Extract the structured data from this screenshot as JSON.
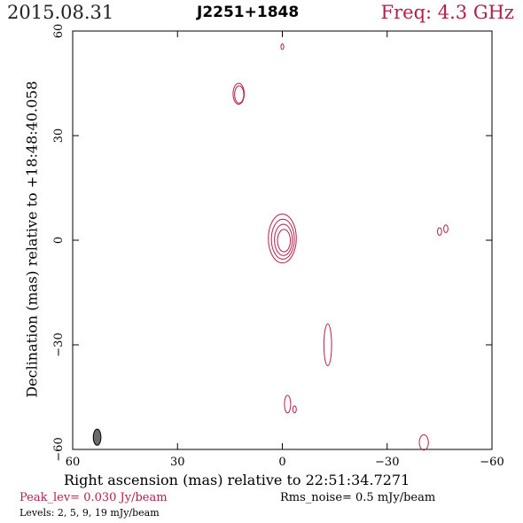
{
  "header": {
    "date": "2015.08.31",
    "source": "J2251+1848",
    "freq": "Freq: 4.3 GHz"
  },
  "chart_data": {
    "type": "contour",
    "xlabel": "Right ascension (mas) relative to 22:51:34.7271",
    "ylabel": "Declination (mas) relative to +18:48:40.058",
    "xlim": [
      60,
      -60
    ],
    "ylim": [
      -60,
      60
    ],
    "xticks": [
      60,
      30,
      0,
      -30,
      -60
    ],
    "yticks": [
      60,
      30,
      0,
      -30,
      -60
    ],
    "xtick_labels": [
      "60",
      "30",
      "0",
      "−30",
      "−60"
    ],
    "ytick_labels": [
      "60",
      "30",
      "0",
      "−30",
      "−60"
    ],
    "contour_color": "#b0204a",
    "levels_mjy": [
      2,
      5,
      9,
      19
    ],
    "peak_level_jy_per_beam": 0.03,
    "rms_noise_mjy_per_beam": 0.5,
    "components": [
      {
        "x": 0.0,
        "y": 0.5,
        "rx": 4.0,
        "ry": 7.0,
        "rings": 4
      },
      {
        "x": 12.5,
        "y": 42.0,
        "rx": 1.6,
        "ry": 3.0,
        "rings": 2
      },
      {
        "x": 0.0,
        "y": 55.5,
        "rx": 0.4,
        "ry": 0.8,
        "rings": 1
      },
      {
        "x": -45.0,
        "y": 2.5,
        "rx": 0.6,
        "ry": 1.1,
        "rings": 1
      },
      {
        "x": -46.8,
        "y": 3.3,
        "rx": 0.6,
        "ry": 1.1,
        "rings": 1
      },
      {
        "x": -13.0,
        "y": -30.0,
        "rx": 1.1,
        "ry": 6.0,
        "rings": 1
      },
      {
        "x": -1.5,
        "y": -47.0,
        "rx": 0.9,
        "ry": 2.5,
        "rings": 1
      },
      {
        "x": -3.5,
        "y": -48.5,
        "rx": 0.5,
        "ry": 1.0,
        "rings": 1
      },
      {
        "x": -40.5,
        "y": -58.0,
        "rx": 1.3,
        "ry": 2.2,
        "rings": 1
      }
    ],
    "beam": {
      "x": 53.0,
      "y": -56.5,
      "rx": 1.1,
      "ry": 2.3,
      "color": "#6b6b6b"
    }
  },
  "footer": {
    "peak": "Peak_lev=  0.030 Jy/beam",
    "rms": "Rms_noise=  0.5 mJy/beam",
    "levels": "Levels:   2,   5,   9,  19  mJy/beam"
  }
}
